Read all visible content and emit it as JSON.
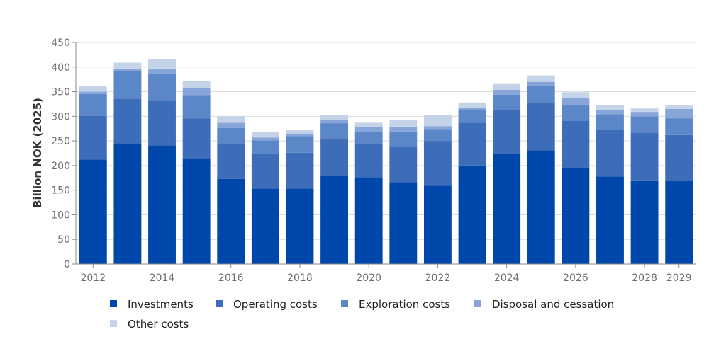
{
  "chart_data": {
    "type": "bar",
    "stacked": true,
    "ylabel": "Billion NOK (2025)",
    "xlabel": "",
    "ylim": [
      0,
      450
    ],
    "yticks": [
      0,
      50,
      100,
      150,
      200,
      250,
      300,
      350,
      400,
      450
    ],
    "categories": [
      "2012",
      "2013",
      "2014",
      "2015",
      "2016",
      "2017",
      "2018",
      "2019",
      "2020",
      "2021",
      "2022",
      "2023",
      "2024",
      "2025",
      "2026",
      "2027",
      "2028",
      "2029"
    ],
    "xtick_labels": [
      "2012",
      "2014",
      "2016",
      "2018",
      "2020",
      "2022",
      "2024",
      "2026",
      "2028",
      "2029"
    ],
    "grid": "horizontal",
    "legend_position": "bottom",
    "series": [
      {
        "name": "Investments",
        "color": "#0047AB",
        "values": [
          212,
          245,
          241,
          214,
          173,
          153,
          153,
          179,
          176,
          166,
          159,
          200,
          224,
          231,
          195,
          178,
          170,
          169
        ]
      },
      {
        "name": "Operating costs",
        "color": "#3D6DB8",
        "values": [
          89,
          91,
          92,
          82,
          72,
          71,
          73,
          75,
          67,
          72,
          91,
          87,
          89,
          96,
          96,
          94,
          97,
          93
        ]
      },
      {
        "name": "Exploration costs",
        "color": "#5B86C7",
        "values": [
          44,
          56,
          53,
          47,
          31,
          27,
          34,
          32,
          25,
          31,
          24,
          27,
          31,
          34,
          31,
          32,
          33,
          34
        ]
      },
      {
        "name": "Disposal and cessation",
        "color": "#87A5D8",
        "values": [
          5,
          5,
          11,
          15,
          11,
          6,
          5,
          6,
          10,
          10,
          6,
          4,
          10,
          9,
          15,
          9,
          9,
          19
        ]
      },
      {
        "name": "Other costs",
        "color": "#C4D3E8",
        "values": [
          11,
          12,
          19,
          14,
          13,
          11,
          8,
          10,
          9,
          13,
          22,
          10,
          13,
          13,
          12,
          10,
          7,
          7
        ]
      }
    ]
  }
}
